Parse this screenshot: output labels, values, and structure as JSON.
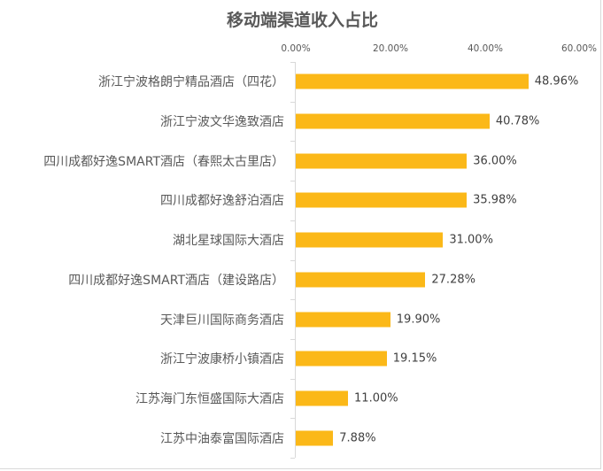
{
  "chart_data": {
    "type": "bar",
    "orientation": "horizontal",
    "title": "移动端渠道收入占比",
    "xlabel": "",
    "ylabel": "",
    "xlim": [
      0,
      60
    ],
    "x_tick_labels": [
      "0.00%",
      "20.00%",
      "40.00%",
      "60.00%"
    ],
    "x_axis_position": "top",
    "grid": false,
    "legend": null,
    "bar_color": "#FBB818",
    "categories": [
      "浙江宁波格朗宁精品酒店（四花）",
      "浙江宁波文华逸致酒店",
      "四川成都好逸SMART酒店（春熙太古里店）",
      "四川成都好逸舒泊酒店",
      "湖北星球国际大酒店",
      "四川成都好逸SMART酒店（建设路店）",
      "天津巨川国际商务酒店",
      "浙江宁波康桥小镇酒店",
      "江苏海门东恒盛国际大酒店",
      "江苏中油泰富国际酒店"
    ],
    "values": [
      48.96,
      40.78,
      36.0,
      35.98,
      31.0,
      27.28,
      19.9,
      19.15,
      11.0,
      7.88
    ],
    "value_labels": [
      "48.96%",
      "40.78%",
      "36.00%",
      "35.98%",
      "31.00%",
      "27.28%",
      "19.90%",
      "19.15%",
      "11.00%",
      "7.88%"
    ]
  },
  "title": "移动端渠道收入占比",
  "x_ticks": [
    {
      "label": "0.00%",
      "value": 0
    },
    {
      "label": "20.00%",
      "value": 20
    },
    {
      "label": "40.00%",
      "value": 40
    },
    {
      "label": "60.00%",
      "value": 60
    }
  ],
  "rows": [
    {
      "category": "浙江宁波格朗宁精品酒店（四花）",
      "value": 48.96,
      "label": "48.96%"
    },
    {
      "category": "浙江宁波文华逸致酒店",
      "value": 40.78,
      "label": "40.78%"
    },
    {
      "category": "四川成都好逸SMART酒店（春熙太古里店）",
      "value": 36.0,
      "label": "36.00%"
    },
    {
      "category": "四川成都好逸舒泊酒店",
      "value": 35.98,
      "label": "35.98%"
    },
    {
      "category": "湖北星球国际大酒店",
      "value": 31.0,
      "label": "31.00%"
    },
    {
      "category": "四川成都好逸SMART酒店（建设路店）",
      "value": 27.28,
      "label": "27.28%"
    },
    {
      "category": "天津巨川国际商务酒店",
      "value": 19.9,
      "label": "19.90%"
    },
    {
      "category": "浙江宁波康桥小镇酒店",
      "value": 19.15,
      "label": "19.15%"
    },
    {
      "category": "江苏海门东恒盛国际大酒店",
      "value": 11.0,
      "label": "11.00%"
    },
    {
      "category": "江苏中油泰富国际酒店",
      "value": 7.88,
      "label": "7.88%"
    }
  ],
  "colors": {
    "bar": "#FBB818",
    "text": "#595959",
    "axis": "#D9D9D9"
  }
}
